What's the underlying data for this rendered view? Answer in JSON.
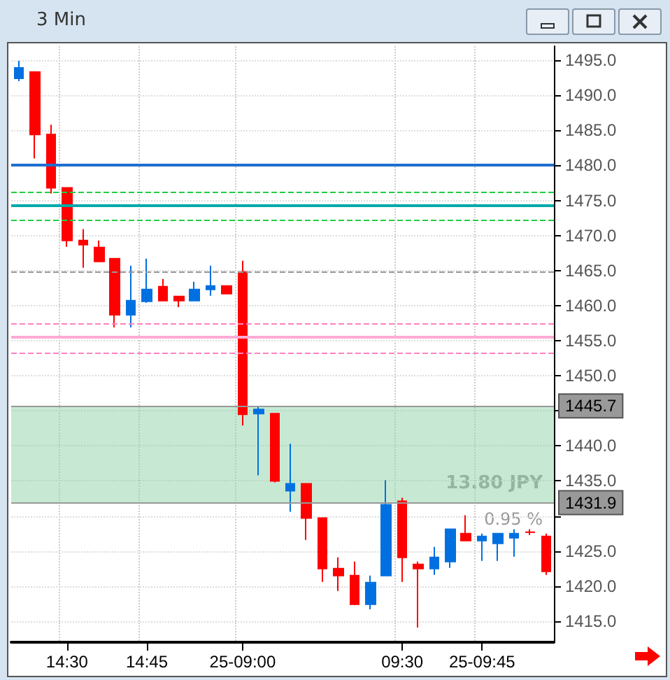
{
  "chart_data": {
    "type": "candlestick",
    "title": "3 Min",
    "categories": [
      null,
      null,
      null,
      "14:30",
      null,
      null,
      null,
      null,
      "14:45",
      null,
      null,
      null,
      null,
      null,
      "25-09:00",
      null,
      null,
      null,
      null,
      null,
      null,
      null,
      null,
      null,
      "09:30",
      null,
      null,
      null,
      null,
      "25-09:45",
      null,
      null,
      null,
      null
    ],
    "ohlc": [
      [
        1492.4,
        1494.9,
        1492.0,
        1493.9
      ],
      [
        1493.3,
        1493.3,
        1481.0,
        1484.4
      ],
      [
        1484.4,
        1485.8,
        1476.0,
        1476.8
      ],
      [
        1476.8,
        1476.8,
        1468.4,
        1469.3
      ],
      [
        1469.3,
        1470.9,
        1465.4,
        1468.7
      ],
      [
        1468.3,
        1469.3,
        1466.3,
        1466.3
      ],
      [
        1466.7,
        1466.7,
        1456.9,
        1458.7
      ],
      [
        1458.7,
        1465.7,
        1456.9,
        1460.7
      ],
      [
        1460.6,
        1466.7,
        1460.4,
        1462.3
      ],
      [
        1462.7,
        1463.8,
        1460.7,
        1460.7
      ],
      [
        1461.3,
        1461.3,
        1459.8,
        1460.7
      ],
      [
        1460.7,
        1463.4,
        1460.7,
        1462.3
      ],
      [
        1462.3,
        1465.7,
        1461.4,
        1462.8
      ],
      [
        1462.8,
        1462.8,
        1461.7,
        1461.7
      ],
      [
        1464.8,
        1466.4,
        1442.9,
        1444.5
      ],
      [
        1444.6,
        1445.7,
        1435.8,
        1445.2
      ],
      [
        1444.6,
        1444.6,
        1434.8,
        1435.0
      ],
      [
        1433.6,
        1440.3,
        1430.6,
        1434.6
      ],
      [
        1434.6,
        1434.6,
        1426.6,
        1429.7
      ],
      [
        1429.7,
        1429.7,
        1420.6,
        1422.5
      ],
      [
        1422.5,
        1424.1,
        1419.3,
        1421.5
      ],
      [
        1421.5,
        1423.5,
        1417.3,
        1417.4
      ],
      [
        1417.4,
        1421.5,
        1416.7,
        1420.5
      ],
      [
        1421.5,
        1435.1,
        1421.5,
        1431.6
      ],
      [
        1432.1,
        1432.6,
        1420.6,
        1424.1
      ],
      [
        1423.1,
        1423.5,
        1414.1,
        1422.5
      ],
      [
        1422.5,
        1425.6,
        1421.6,
        1424.1
      ],
      [
        1423.5,
        1428.1,
        1422.6,
        1428.1
      ],
      [
        1427.5,
        1430.1,
        1426.5,
        1426.5
      ],
      [
        1426.5,
        1427.5,
        1423.6,
        1427.1
      ],
      [
        1426.1,
        1427.5,
        1423.6,
        1427.5
      ],
      [
        1426.9,
        1428.1,
        1424.2,
        1427.5
      ],
      [
        1427.7,
        1428.1,
        1427.3,
        1427.7
      ],
      [
        1427.1,
        1427.5,
        1421.6,
        1422.1
      ]
    ],
    "colors": [
      "#0070e0",
      "#ff0000",
      "#ff0000",
      "#ff0000",
      "#ff0000",
      "#ff0000",
      "#ff0000",
      "#0070e0",
      "#0070e0",
      "#ff0000",
      "#ff0000",
      "#0070e0",
      "#0070e0",
      "#ff0000",
      "#ff0000",
      "#0070e0",
      "#ff0000",
      "#0070e0",
      "#ff0000",
      "#ff0000",
      "#ff0000",
      "#ff0000",
      "#0070e0",
      "#0070e0",
      "#ff0000",
      "#ff0000",
      "#0070e0",
      "#0070e0",
      "#ff0000",
      "#0070e0",
      "#0070e0",
      "#0070e0",
      "#ff0000",
      "#ff0000"
    ],
    "ylim": [
      1412,
      1497
    ],
    "yticks": [
      {
        "value": 1415,
        "label": "1415.0"
      },
      {
        "value": 1420,
        "label": "1420.0"
      },
      {
        "value": 1425,
        "label": "1425.0"
      },
      {
        "value": 1430,
        "label": null
      },
      {
        "value": 1435,
        "label": "1435.0"
      },
      {
        "value": 1440,
        "label": "1440.0"
      },
      {
        "value": 1445,
        "label": null
      },
      {
        "value": 1450,
        "label": "1450.0"
      },
      {
        "value": 1455,
        "label": "1455.0"
      },
      {
        "value": 1460,
        "label": "1460.0"
      },
      {
        "value": 1465,
        "label": "1465.0"
      },
      {
        "value": 1470,
        "label": "1470.0"
      },
      {
        "value": 1475,
        "label": "1475.0"
      },
      {
        "value": 1480,
        "label": "1480.0"
      },
      {
        "value": 1485,
        "label": "1485.0"
      },
      {
        "value": 1490,
        "label": "1490.0"
      },
      {
        "value": 1495,
        "label": "1495.0"
      }
    ],
    "ref_lines": [
      {
        "axis": "y",
        "value": 1480,
        "color": "#1f6fd0",
        "line_style": "solid"
      },
      {
        "axis": "y",
        "value": 1476.2,
        "color": "#22cc44",
        "line_style": "dashed"
      },
      {
        "axis": "y",
        "value": 1474.4,
        "color": "#00aaaa",
        "line_style": "solid"
      },
      {
        "axis": "y",
        "value": 1472.3,
        "color": "#22cc44",
        "line_style": "dashed"
      },
      {
        "axis": "y",
        "value": 1464.8,
        "color": "#999999",
        "line_style": "dashed"
      },
      {
        "axis": "y",
        "value": 1457.4,
        "color": "#ff80c0",
        "line_style": "dashed"
      },
      {
        "axis": "y",
        "value": 1455.5,
        "color": "#ffaad4",
        "line_style": "solid"
      },
      {
        "axis": "y",
        "value": 1453.3,
        "color": "#ff80c0",
        "line_style": "dashed"
      },
      {
        "axis": "y",
        "value": 1445.7,
        "label": "1445.7",
        "color": "#999999",
        "line_style": "solid"
      },
      {
        "axis": "y",
        "value": 1431.9,
        "label": "1431.9",
        "color": "#999999",
        "line_style": "solid"
      }
    ],
    "bands": [
      {
        "axis": "y",
        "from": 1431.9,
        "to": 1445.7,
        "color": "#8fd3a8"
      }
    ],
    "annotations": [
      "13.80 JPY",
      "0.95 %"
    ],
    "grid": true
  }
}
